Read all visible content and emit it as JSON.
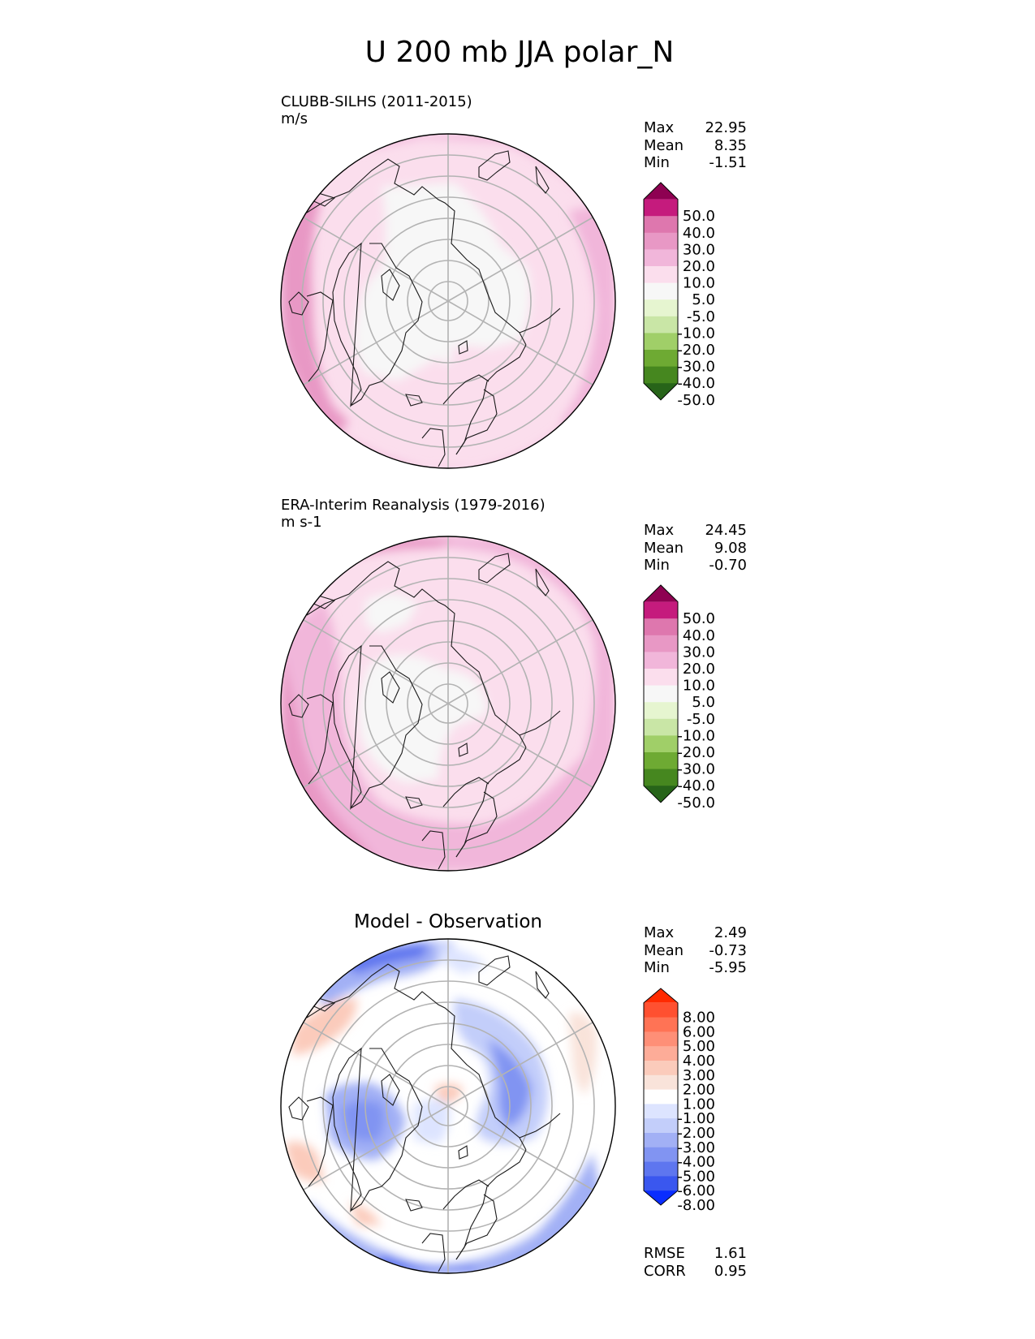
{
  "figure": {
    "title": "U 200 mb JJA polar_N"
  },
  "chart_data": [
    {
      "type": "heatmap",
      "projection": "north-polar-stereographic",
      "title": "CLUBB-SILHS (2011-2015)",
      "units": "m/s",
      "stats": {
        "max_label": "Max",
        "max": "22.95",
        "mean_label": "Mean",
        "mean": "8.35",
        "min_label": "Min",
        "min": "-1.51"
      },
      "colorbar": {
        "levels": [
          "50.0",
          "40.0",
          "30.0",
          "20.0",
          "10.0",
          "5.0",
          "-5.0",
          "-10.0",
          "-20.0",
          "-30.0",
          "-40.0",
          "-50.0"
        ],
        "colors": [
          "#8e0152",
          "#c51b7d",
          "#de77ae",
          "#e898c5",
          "#f1b6da",
          "#fbdeed",
          "#f7f7f7",
          "#e6f5d0",
          "#c9e6a6",
          "#a0cf68",
          "#6eaa33",
          "#46871f",
          "#276419"
        ],
        "extend": "both"
      },
      "grid": true
    },
    {
      "type": "heatmap",
      "projection": "north-polar-stereographic",
      "title": "ERA-Interim Reanalysis (1979-2016)",
      "units": "m s-1",
      "stats": {
        "max_label": "Max",
        "max": "24.45",
        "mean_label": "Mean",
        "mean": "9.08",
        "min_label": "Min",
        "min": "-0.70"
      },
      "colorbar": {
        "levels": [
          "50.0",
          "40.0",
          "30.0",
          "20.0",
          "10.0",
          "5.0",
          "-5.0",
          "-10.0",
          "-20.0",
          "-30.0",
          "-40.0",
          "-50.0"
        ],
        "colors": [
          "#8e0152",
          "#c51b7d",
          "#de77ae",
          "#e898c5",
          "#f1b6da",
          "#fbdeed",
          "#f7f7f7",
          "#e6f5d0",
          "#c9e6a6",
          "#a0cf68",
          "#6eaa33",
          "#46871f",
          "#276419"
        ],
        "extend": "both"
      },
      "grid": true
    },
    {
      "type": "heatmap",
      "projection": "north-polar-stereographic",
      "title": "Model - Observation",
      "stats": {
        "max_label": "Max",
        "max": "2.49",
        "mean_label": "Mean",
        "mean": "-0.73",
        "min_label": "Min",
        "min": "-5.95"
      },
      "metrics": {
        "rmse_label": "RMSE",
        "rmse": "1.61",
        "corr_label": "CORR",
        "corr": "0.95"
      },
      "colorbar": {
        "levels": [
          "8.00",
          "6.00",
          "5.00",
          "4.00",
          "3.00",
          "2.00",
          "1.00",
          "-1.00",
          "-2.00",
          "-3.00",
          "-4.00",
          "-5.00",
          "-6.00",
          "-8.00"
        ],
        "colors": [
          "#ff2a00",
          "#ff5030",
          "#ff7355",
          "#fe8f77",
          "#fdac98",
          "#fbcbbb",
          "#f9e3da",
          "#ffffff",
          "#dde4ff",
          "#c3cefa",
          "#a2b0f5",
          "#8194f2",
          "#5e76ef",
          "#3a57ef",
          "#0a2dff"
        ],
        "extend": "both"
      },
      "grid": true
    }
  ]
}
